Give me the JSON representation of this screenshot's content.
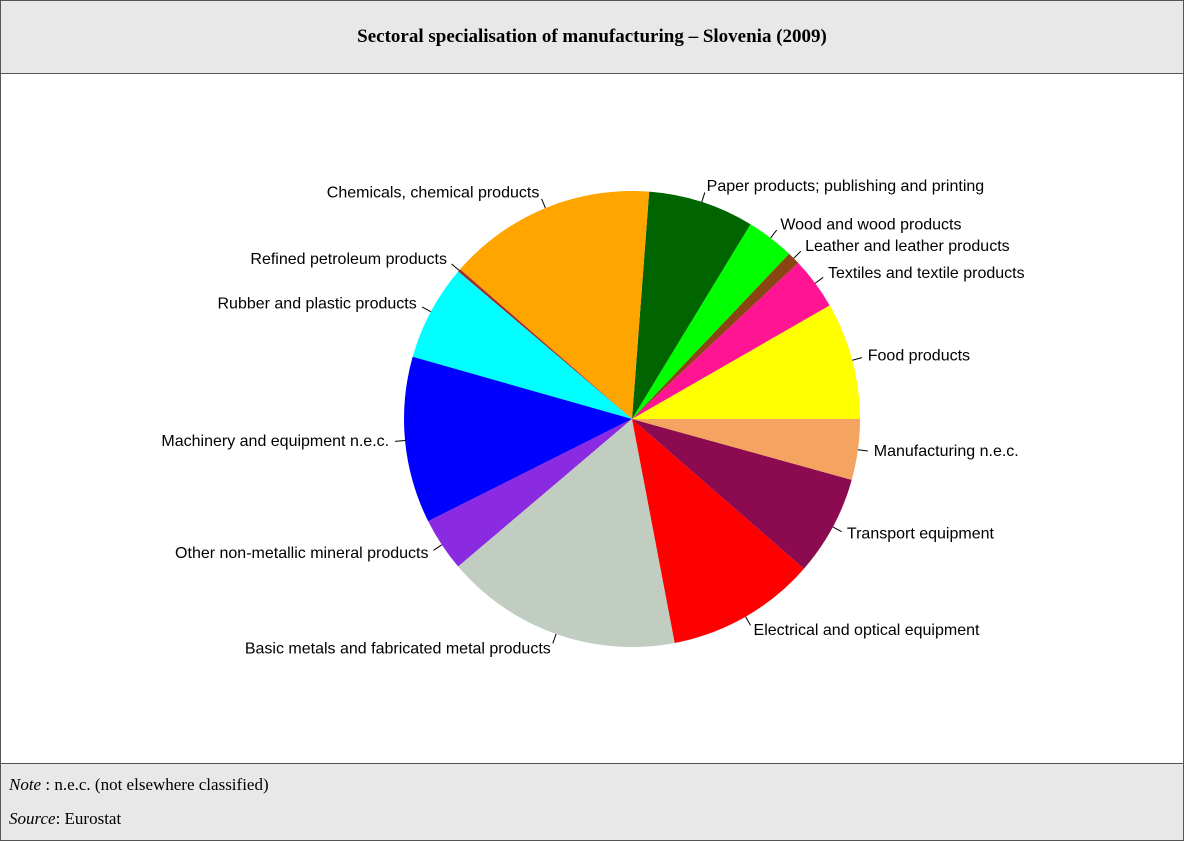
{
  "chart_data": {
    "type": "pie",
    "title": "Sectoral specialisation of manufacturing – Slovenia (2009)",
    "categories": [
      "Food products",
      "Textiles and textile products",
      "Leather and leather products",
      "Wood and wood products",
      "Paper products; publishing and printing",
      "Chemicals, chemical products",
      "Refined petroleum products",
      "Rubber and plastic products",
      "Machinery and equipment n.e.c.",
      "Other non-metallic mineral products",
      "Basic metals and fabricated metal products",
      "Electrical and optical equipment",
      "Transport equipment",
      "Manufacturing n.e.c."
    ],
    "values": [
      8.3,
      3.7,
      0.9,
      3.4,
      7.5,
      14.8,
      0.2,
      6.8,
      11.8,
      3.8,
      16.8,
      10.6,
      7.1,
      4.3
    ],
    "colors": [
      "#ffff00",
      "#ff1493",
      "#8b4513",
      "#00ff00",
      "#006400",
      "#ffa500",
      "#a52a2a",
      "#00ffff",
      "#0000ff",
      "#8a2be2",
      "#c1cdc1",
      "#ff0000",
      "#8b0a50",
      "#f4a460"
    ]
  },
  "footer": {
    "note_label": "Note",
    "note_text": " : n.e.c. (not elsewhere classified)",
    "source_label": "Source",
    "source_text": ": Eurostat"
  }
}
